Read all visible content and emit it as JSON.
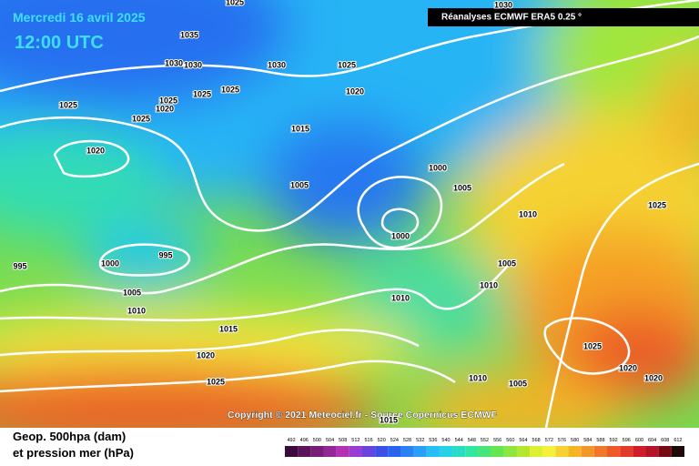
{
  "header": {
    "date": "Mercredi 16 avril 2025",
    "time": "12:00 UTC",
    "source": "Réanalyses ECMWF ERA5 0.25 °"
  },
  "copyright": "Copyright © 2021 Meteociel.fr - Source Copernicus ECMWF",
  "legend": {
    "line1": "Geop. 500hpa (dam)",
    "line2": "et pression mer (hPa)",
    "scale": [
      492,
      496,
      500,
      504,
      508,
      512,
      516,
      520,
      524,
      528,
      532,
      536,
      540,
      544,
      548,
      552,
      556,
      560,
      564,
      568,
      572,
      576,
      580,
      584,
      588,
      592,
      596,
      600,
      604,
      608,
      612
    ],
    "colors": [
      "#3c0a3c",
      "#5a145a",
      "#781e78",
      "#962896",
      "#b432b4",
      "#9a3cd2",
      "#6446dc",
      "#3c50e6",
      "#2864f0",
      "#2882f5",
      "#28a0fa",
      "#28bef5",
      "#28d2e6",
      "#28dcc8",
      "#32e6a0",
      "#46e678",
      "#64e650",
      "#8ce63c",
      "#b4e632",
      "#dcf032",
      "#f5f03c",
      "#f5d232",
      "#f5b428",
      "#f59628",
      "#f07828",
      "#eb5a28",
      "#e13c28",
      "#d21e28",
      "#b41428",
      "#780a14",
      "#1e0a0a"
    ]
  },
  "isobars": [
    "1025",
    "1030",
    "1035",
    "1030",
    "1030",
    "1030",
    "1025",
    "1025",
    "1020",
    "1025",
    "1025",
    "1020",
    "1025",
    "1025",
    "1015",
    "1020",
    "1000",
    "1005",
    "1005",
    "1010",
    "1025",
    "1000",
    "995",
    "1000",
    "995",
    "1005",
    "1010",
    "1005",
    "1010",
    "1010",
    "1015",
    "1020",
    "1025",
    "1020",
    "1020",
    "1025",
    "1010",
    "1005",
    "1015"
  ]
}
